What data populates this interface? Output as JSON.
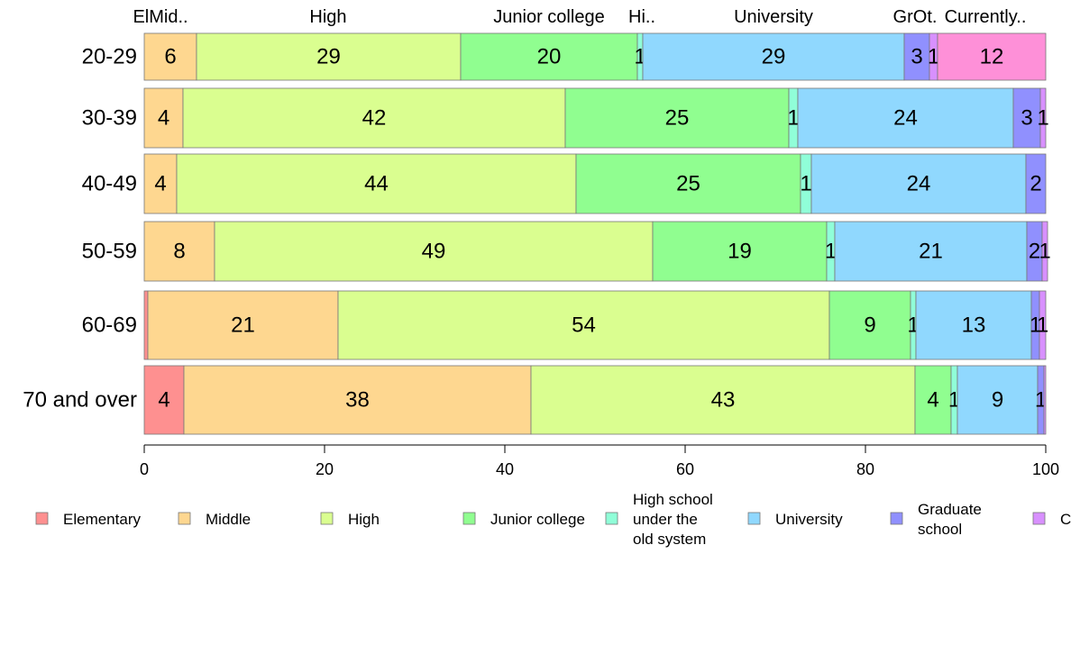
{
  "chart_data": {
    "type": "bar",
    "orientation": "horizontal",
    "stacked": true,
    "xlim": [
      0,
      100
    ],
    "x_ticks": [
      "0",
      "20",
      "40",
      "60",
      "80",
      "100"
    ],
    "categories": [
      "20-29",
      "30-39",
      "40-49",
      "50-59",
      "60-69",
      "70 and over"
    ],
    "top_labels": [
      "ElMid..",
      "High",
      "Junior college",
      "Hi..",
      "University",
      "GrOt.",
      "Currently.."
    ],
    "series": [
      {
        "name": "Elementary",
        "color": "#fe9090",
        "values": [
          0,
          0,
          0,
          0,
          0.4,
          4.4
        ],
        "labels": [
          "",
          "",
          "",
          "",
          "",
          "4"
        ]
      },
      {
        "name": "Middle",
        "color": "#fed790",
        "values": [
          5.8,
          4.3,
          3.6,
          7.8,
          21.1,
          38.5
        ],
        "labels": [
          "6",
          "4",
          "4",
          "8",
          "21",
          "38"
        ]
      },
      {
        "name": "High",
        "color": "#dafe90",
        "values": [
          29.3,
          42.4,
          44.3,
          48.6,
          54.5,
          42.6
        ],
        "labels": [
          "29",
          "42",
          "44",
          "49",
          "54",
          "43"
        ]
      },
      {
        "name": "Junior college",
        "color": "#90fe90",
        "values": [
          19.6,
          24.8,
          24.9,
          19.3,
          9.0,
          4.0
        ],
        "labels": [
          "20",
          "25",
          "25",
          "19",
          "9",
          "4"
        ]
      },
      {
        "name": "High school under the old system",
        "color": "#90fed8",
        "values": [
          0.6,
          1.0,
          1.2,
          0.9,
          0.6,
          0.7
        ],
        "labels": [
          "1",
          "1",
          "1",
          "1",
          "1",
          "1"
        ]
      },
      {
        "name": "University",
        "color": "#90d8fe",
        "values": [
          29.0,
          23.9,
          23.8,
          21.3,
          12.8,
          8.9
        ],
        "labels": [
          "29",
          "24",
          "24",
          "21",
          "13",
          "9"
        ]
      },
      {
        "name": "Graduate school",
        "color": "#9090fe",
        "values": [
          2.8,
          3.0,
          2.2,
          1.7,
          0.9,
          0.7
        ],
        "labels": [
          "3",
          "3",
          "2",
          "2",
          "1",
          "1"
        ]
      },
      {
        "name": "Ot.",
        "color": "#d890fe",
        "values": [
          0.9,
          0.6,
          0,
          0.6,
          0.7,
          0.2
        ],
        "labels": [
          "1",
          "1",
          "",
          "1",
          "1",
          ""
        ]
      },
      {
        "name": "Currently..",
        "color": "#fe90d8",
        "values": [
          12.0,
          0,
          0,
          0,
          0,
          0
        ],
        "labels": [
          "12",
          "",
          "",
          "",
          "",
          ""
        ]
      }
    ],
    "legend": {
      "placement": "bottom",
      "entries": [
        {
          "label": "Elementary",
          "color": "#fe9090"
        },
        {
          "label": "Middle",
          "color": "#fed790"
        },
        {
          "label": "High",
          "color": "#dafe90"
        },
        {
          "label": "Junior college",
          "color": "#90fe90"
        },
        {
          "label": "High school under the old system",
          "lines": [
            "High school",
            "under the",
            "old system"
          ],
          "color": "#90fed8"
        },
        {
          "label": "University",
          "color": "#90d8fe"
        },
        {
          "label": "Graduate school",
          "lines": [
            "Graduate",
            "school"
          ],
          "color": "#9090fe"
        },
        {
          "label": "C",
          "color": "#d890fe"
        }
      ]
    }
  }
}
